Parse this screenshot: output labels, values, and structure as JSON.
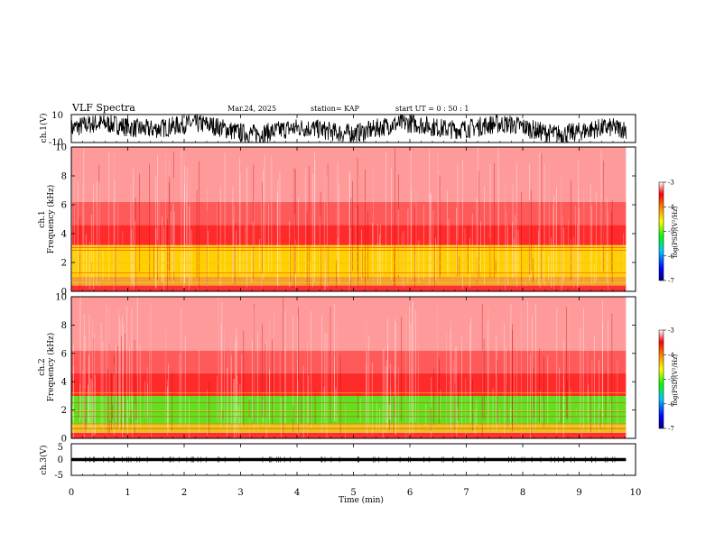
{
  "header": {
    "title": "VLF Spectra",
    "date": "Mar.24, 2025",
    "station": "station= KAP",
    "start": "start  UT =   0  : 50 : 1"
  },
  "chart_data": [
    {
      "type": "line",
      "panel": "waveform-ch1",
      "ylabel": "ch.1(V)",
      "ylim": [
        -10,
        10
      ],
      "yticks": [
        "10",
        "-10"
      ],
      "x_range_min": [
        0,
        9.83
      ],
      "amplitude_range_v": [
        -10,
        10
      ],
      "note_values": "dense noisy waveform filling most of the range"
    },
    {
      "type": "heatmap",
      "panel": "spectrogram-ch1",
      "ylabel": "Frequency  (kHz)",
      "channel_label": "ch.1",
      "ylim": [
        0,
        10
      ],
      "yticks": [
        "0",
        "2",
        "4",
        "6",
        "8",
        "10"
      ],
      "x_range_min": [
        0,
        9.83
      ],
      "bands_khz": [
        {
          "from": 0,
          "to": 0.4,
          "color": "#ff3030"
        },
        {
          "from": 0.4,
          "to": 1.0,
          "color": "#f2a030"
        },
        {
          "from": 1.0,
          "to": 3.2,
          "color": "#ffd000"
        },
        {
          "from": 3.2,
          "to": 4.6,
          "color": "#ff2a2a"
        },
        {
          "from": 4.6,
          "to": 6.2,
          "color": "#ff5a5a"
        },
        {
          "from": 6.2,
          "to": 10.0,
          "color": "#ff9a9a"
        }
      ],
      "colorbar": {
        "label": "log(PSD)(V²/Hz)",
        "range": [
          -7,
          -3
        ],
        "ticks": [
          "-3",
          "-4",
          "-5",
          "-6",
          "-7"
        ]
      }
    },
    {
      "type": "heatmap",
      "panel": "spectrogram-ch2",
      "ylabel": "Frequency  (kHz)",
      "channel_label": "ch.2",
      "ylim": [
        0,
        10
      ],
      "yticks": [
        "0",
        "2",
        "4",
        "6",
        "8",
        "10"
      ],
      "x_range_min": [
        0,
        9.83
      ],
      "bands_khz": [
        {
          "from": 0,
          "to": 0.4,
          "color": "#ff3030"
        },
        {
          "from": 0.4,
          "to": 1.0,
          "color": "#e8c020"
        },
        {
          "from": 1.0,
          "to": 3.0,
          "color": "#60e020"
        },
        {
          "from": 3.0,
          "to": 4.6,
          "color": "#ff2a2a"
        },
        {
          "from": 4.6,
          "to": 6.2,
          "color": "#ff5a5a"
        },
        {
          "from": 6.2,
          "to": 10.0,
          "color": "#ff9a9a"
        }
      ],
      "colorbar": {
        "label": "log(PSD)(V²/Hz)",
        "range": [
          -7,
          -3
        ],
        "ticks": [
          "-3",
          "-4",
          "-5",
          "-6",
          "-7"
        ]
      }
    },
    {
      "type": "line",
      "panel": "waveform-ch3",
      "ylabel": "ch.3(V)",
      "ylim": [
        -5,
        5
      ],
      "yticks": [
        "5",
        "0",
        "-5"
      ],
      "x_range_min": [
        0,
        9.83
      ],
      "amplitude_range_v": [
        -0.5,
        0.5
      ],
      "note_values": "thin flat band near 0 V"
    }
  ],
  "xaxis": {
    "label": "Time  (min)",
    "range": [
      0,
      10
    ],
    "ticks": [
      "0",
      "1",
      "2",
      "3",
      "4",
      "5",
      "6",
      "7",
      "8",
      "9",
      "10"
    ]
  }
}
